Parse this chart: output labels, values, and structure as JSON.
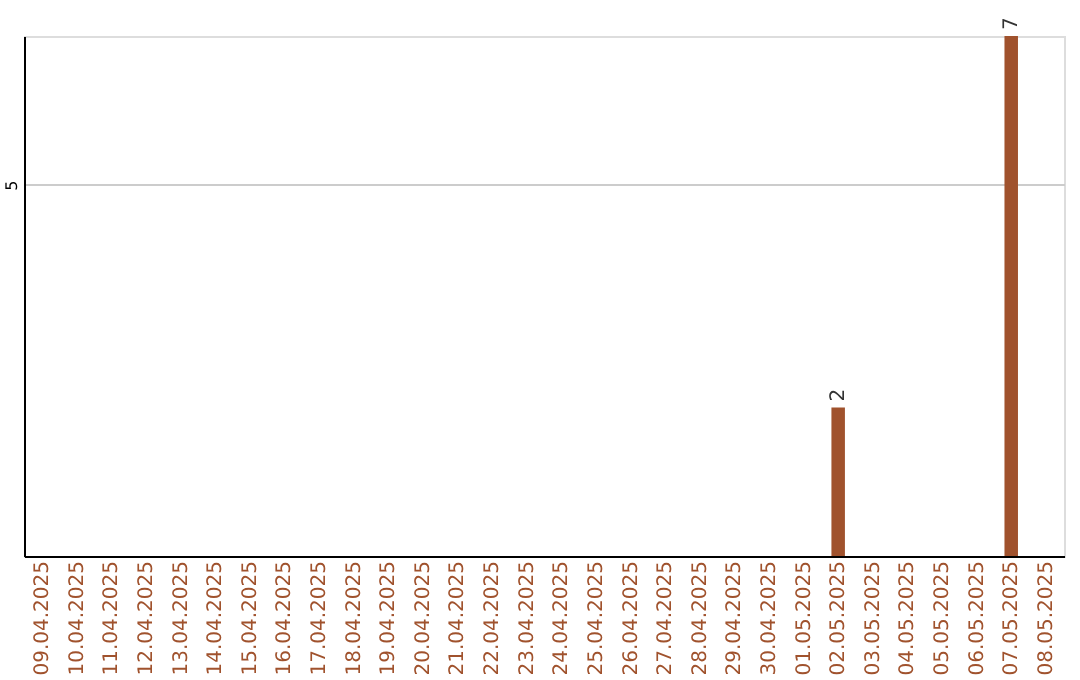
{
  "chart_data": {
    "type": "bar",
    "categories": [
      "09.04.2025",
      "10.04.2025",
      "11.04.2025",
      "12.04.2025",
      "13.04.2025",
      "14.04.2025",
      "15.04.2025",
      "16.04.2025",
      "17.04.2025",
      "18.04.2025",
      "19.04.2025",
      "20.04.2025",
      "21.04.2025",
      "22.04.2025",
      "23.04.2025",
      "24.04.2025",
      "25.04.2025",
      "26.04.2025",
      "27.04.2025",
      "28.04.2025",
      "29.04.2025",
      "30.04.2025",
      "01.05.2025",
      "02.05.2025",
      "03.05.2025",
      "04.05.2025",
      "05.05.2025",
      "06.05.2025",
      "07.05.2025",
      "08.05.2025"
    ],
    "values": [
      null,
      null,
      null,
      null,
      null,
      null,
      null,
      null,
      null,
      null,
      null,
      null,
      null,
      null,
      null,
      null,
      null,
      null,
      null,
      null,
      null,
      null,
      null,
      2,
      null,
      null,
      null,
      null,
      7,
      null
    ],
    "color": "#a0522d",
    "ylim": [
      0,
      7
    ],
    "yticks": [
      5
    ],
    "grid": "y",
    "data_labels": true
  }
}
